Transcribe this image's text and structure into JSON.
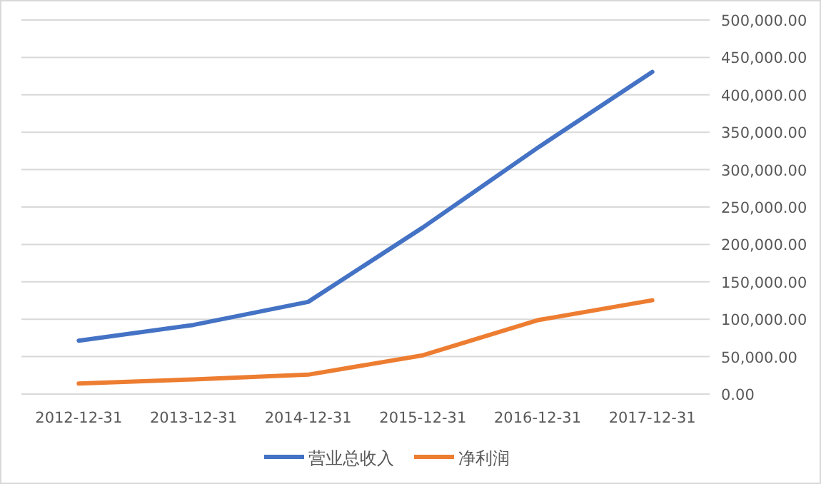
{
  "chart_data": {
    "type": "line",
    "categories": [
      "2012-12-31",
      "2013-12-31",
      "2014-12-31",
      "2015-12-31",
      "2016-12-31",
      "2017-12-31"
    ],
    "series": [
      {
        "name": "营业总收入",
        "color": "#4472c4",
        "values": [
          71400,
          92400,
          123200,
          222700,
          329100,
          430700
        ]
      },
      {
        "name": "净利润",
        "color": "#ed7d31",
        "values": [
          14000,
          19600,
          25900,
          51800,
          98700,
          125400
        ]
      }
    ],
    "ylim": [
      0,
      500000
    ],
    "yticks": [
      {
        "value": 0,
        "label": "0.00"
      },
      {
        "value": 50000,
        "label": "50,000.00"
      },
      {
        "value": 100000,
        "label": "100,000.00"
      },
      {
        "value": 150000,
        "label": "150,000.00"
      },
      {
        "value": 200000,
        "label": "200,000.00"
      },
      {
        "value": 250000,
        "label": "250,000.00"
      },
      {
        "value": 300000,
        "label": "300,000.00"
      },
      {
        "value": 350000,
        "label": "350,000.00"
      },
      {
        "value": 400000,
        "label": "400,000.00"
      },
      {
        "value": 450000,
        "label": "450,000.00"
      },
      {
        "value": 500000,
        "label": "500,000.00"
      }
    ],
    "grid": "y",
    "legend": "bottom",
    "marker": "none",
    "line_style": "solid"
  }
}
